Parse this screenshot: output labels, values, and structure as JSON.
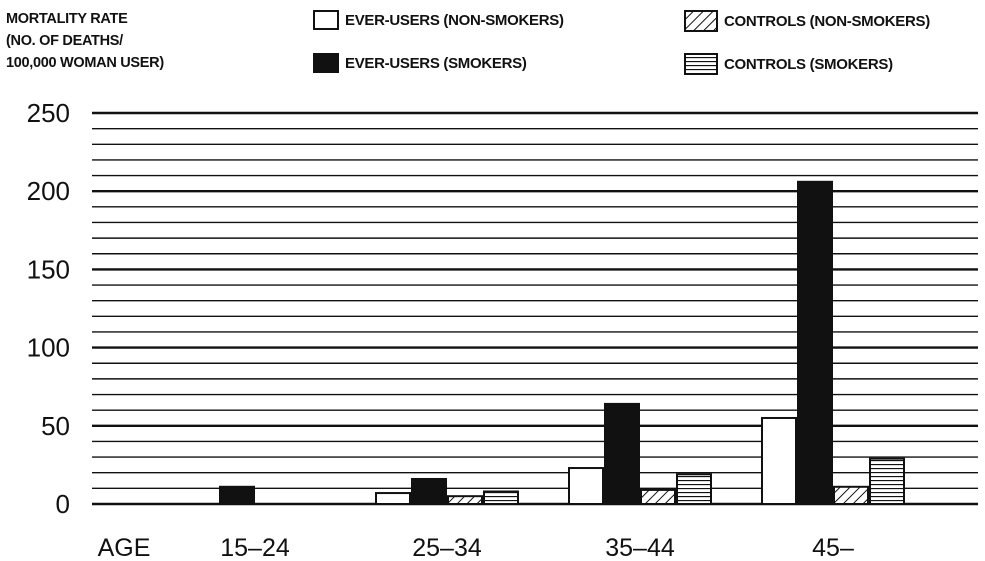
{
  "chart_data": {
    "type": "bar",
    "ylabel": "MORTALITY RATE\n(NO. OF DEATHS/\n100,000 WOMAN USER)",
    "xlabel": "AGE",
    "categories": [
      "15–24",
      "25–34",
      "35–44",
      "45–"
    ],
    "ylim": [
      0,
      250
    ],
    "yticks": [
      "0",
      "50",
      "100",
      "150",
      "200",
      "250"
    ],
    "series": [
      {
        "name": "EVER-USERS (NON-SMOKERS)",
        "fill": "white",
        "values": [
          0,
          7,
          23,
          55
        ]
      },
      {
        "name": "EVER-USERS (SMOKERS)",
        "fill": "black",
        "values": [
          11,
          16,
          64,
          206
        ]
      },
      {
        "name": "CONTROLS (NON-SMOKERS)",
        "fill": "diagonal",
        "values": [
          0,
          5,
          9,
          11
        ]
      },
      {
        "name": "CONTROLS (SMOKERS)",
        "fill": "horizontal",
        "values": [
          0,
          8,
          19,
          29
        ]
      }
    ],
    "grid": true,
    "legend": "top"
  }
}
